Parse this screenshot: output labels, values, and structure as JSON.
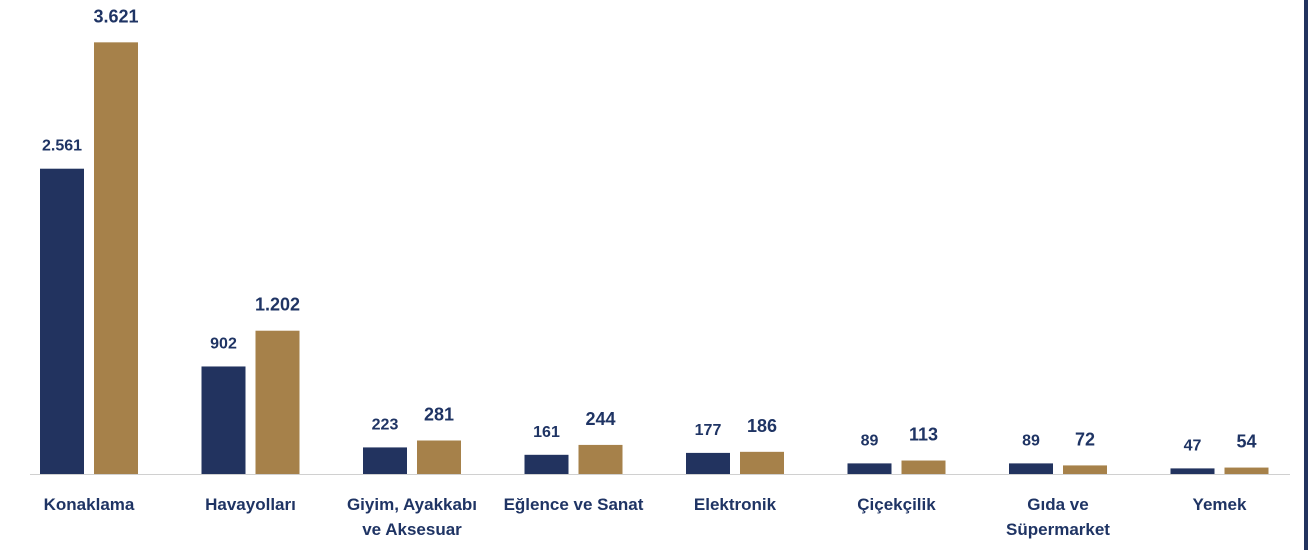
{
  "chart_data": {
    "type": "bar",
    "categories": [
      "Konaklama",
      "Havayolları",
      "Giyim, Ayakkabı ve Aksesuar",
      "Eğlence ve Sanat",
      "Elektronik",
      "Çiçekçilik",
      "Gıda ve Süpermarket",
      "Yemek"
    ],
    "series": [
      {
        "color": "#22335f",
        "values": [
          2561,
          902,
          223,
          161,
          177,
          89,
          89,
          47
        ],
        "value_labels": [
          "2.561",
          "902",
          "223",
          "161",
          "177",
          "89",
          "89",
          "47"
        ]
      },
      {
        "color": "#a6814a",
        "values": [
          3621,
          1202,
          281,
          244,
          186,
          113,
          72,
          54
        ],
        "value_labels": [
          "3.621",
          "1.202",
          "281",
          "244",
          "186",
          "113",
          "72",
          "54"
        ]
      }
    ],
    "ylim": [
      0,
      3800
    ]
  }
}
